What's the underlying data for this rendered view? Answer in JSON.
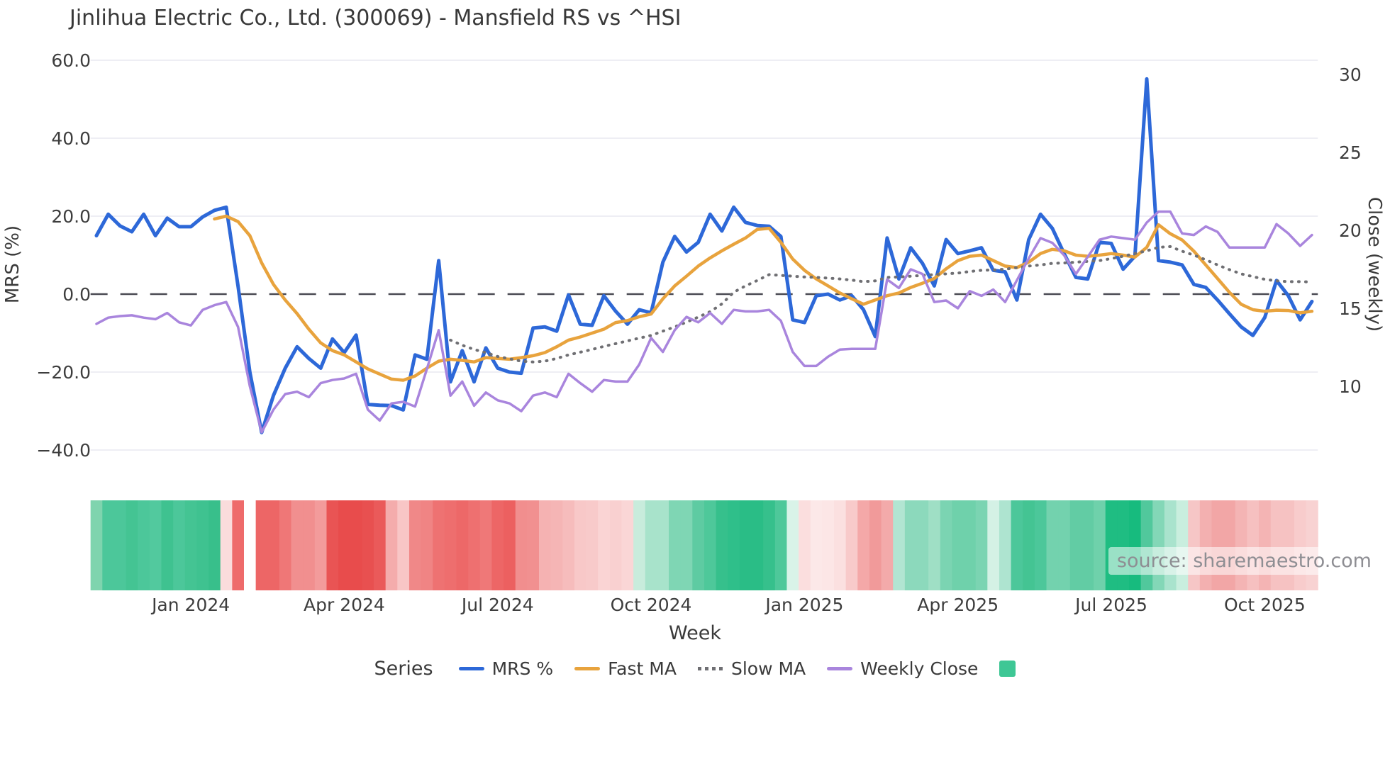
{
  "title": "Jinlihua Electric Co., Ltd. (300069) - Mansfield RS vs ^HSI",
  "watermark": "source: sharemaestro.com",
  "axes": {
    "left_label": "MRS (%)",
    "right_label": "Close (weekly)",
    "x_label": "Week",
    "left_ticks": [
      {
        "value": 60,
        "label": "60.0"
      },
      {
        "value": 40,
        "label": "40.0"
      },
      {
        "value": 20,
        "label": "20.0"
      },
      {
        "value": 0,
        "label": "0.0"
      },
      {
        "value": -20,
        "label": "−20.0"
      },
      {
        "value": -40,
        "label": "−40.0"
      }
    ],
    "right_ticks": [
      {
        "value": 30,
        "label": "30"
      },
      {
        "value": 25,
        "label": "25"
      },
      {
        "value": 20,
        "label": "20"
      },
      {
        "value": 15,
        "label": "15"
      },
      {
        "value": 10,
        "label": "10"
      }
    ],
    "x_ticks": [
      {
        "index": 8,
        "label": "Jan 2024"
      },
      {
        "index": 21,
        "label": "Apr 2024"
      },
      {
        "index": 34,
        "label": "Jul 2024"
      },
      {
        "index": 47,
        "label": "Oct 2024"
      },
      {
        "index": 60,
        "label": "Jan 2025"
      },
      {
        "index": 73,
        "label": "Apr 2025"
      },
      {
        "index": 86,
        "label": "Jul 2025"
      },
      {
        "index": 99,
        "label": "Oct 2025"
      }
    ]
  },
  "legend": {
    "title": "Series",
    "items": [
      {
        "label": "MRS %",
        "style": "line",
        "color": "#2d68d8"
      },
      {
        "label": "Fast MA",
        "style": "line",
        "color": "#e8a33d"
      },
      {
        "label": "Slow MA",
        "style": "dotted",
        "color": "#6f6f73"
      },
      {
        "label": "Weekly Close",
        "style": "line",
        "color": "#a985dd"
      },
      {
        "label": "",
        "style": "square",
        "color": "#3ec795"
      }
    ]
  },
  "colors": {
    "grid": "#e9e9f0",
    "zero_line": "#4a4a52",
    "tick_text": "#3d3d3d",
    "mrs": "#2d68d8",
    "fast_ma": "#e8a33d",
    "slow_ma": "#6f6f73",
    "weekly_close": "#a985dd",
    "legend_square": "#3ec795"
  },
  "chart_data": {
    "type": "line",
    "title": "Jinlihua Electric Co., Ltd. (300069) - Mansfield RS vs ^HSI",
    "xlabel": "Week",
    "n_points": 104,
    "x_unit": "weekly index, ticks listed in axes.x_ticks",
    "left_axis": {
      "label": "MRS (%)",
      "ticks": [
        60,
        40,
        20,
        0,
        -20,
        -40
      ],
      "zero_line_dashed": true
    },
    "right_axis": {
      "label": "Close (weekly)",
      "ticks": [
        30,
        25,
        20,
        15,
        10
      ]
    },
    "legend_position": "bottom-center",
    "grid": "horizontal-only",
    "series": [
      {
        "name": "MRS %",
        "axis": "left",
        "color": "#2d68d8",
        "style": "solid",
        "width": 5,
        "values": [
          15,
          20.5,
          17.5,
          16,
          20.5,
          15,
          19.5,
          17.3,
          17.3,
          19.8,
          21.5,
          22.3,
          2,
          -20,
          -35.5,
          -26,
          -19,
          -13.5,
          -16.5,
          -19,
          -11.5,
          -15,
          -10.5,
          -28.3,
          -28.5,
          -28.6,
          -29.7,
          -15.6,
          -16.7,
          8.6,
          -22.5,
          -14.5,
          -22.5,
          -13.8,
          -19,
          -20,
          -20.3,
          -8.7,
          -8.4,
          -9.5,
          -0.2,
          -7.7,
          -8,
          -0.4,
          -4.4,
          -7.7,
          -4,
          -4.8,
          8.2,
          14.8,
          10.8,
          13.3,
          20.5,
          16.2,
          22.3,
          18.4,
          17.6,
          17.4,
          14.8,
          -6.6,
          -7.3,
          -0.4,
          0,
          -1.5,
          -0.4,
          -4,
          -10.9,
          14.4,
          3.9,
          11.9,
          7.9,
          2.1,
          14,
          10.4,
          11.1,
          11.9,
          6.1,
          5.7,
          -1.5,
          14,
          20.5,
          16.9,
          10.4,
          4.3,
          3.9,
          13.3,
          13,
          6.4,
          9.7,
          55.2,
          8.6,
          8.2,
          7.5,
          2.5,
          1.7,
          -1.5,
          -5,
          -8.4,
          -10.6,
          -6,
          3.5,
          -0.4,
          -6.6,
          -1.9
        ]
      },
      {
        "name": "Fast MA",
        "axis": "left",
        "color": "#e8a33d",
        "style": "solid",
        "width": 4.5,
        "values": [
          null,
          null,
          null,
          null,
          null,
          null,
          null,
          null,
          null,
          null,
          19.3,
          20,
          18.6,
          15,
          8,
          2.5,
          -1.5,
          -5,
          -9,
          -12.5,
          -14.5,
          -15.6,
          -17.4,
          -19.2,
          -20.5,
          -21.8,
          -22.1,
          -21,
          -19,
          -17.2,
          -16.7,
          -17,
          -17.4,
          -16.3,
          -16.5,
          -16.7,
          -16.3,
          -15.8,
          -15,
          -13.5,
          -11.8,
          -11,
          -10,
          -9,
          -7.3,
          -6.8,
          -5.8,
          -5.1,
          -1.2,
          2.1,
          4.6,
          7.2,
          9.3,
          11.1,
          12.8,
          14.4,
          16.6,
          16.9,
          13.3,
          9,
          6.1,
          3.9,
          2.1,
          0.3,
          -1.2,
          -2.6,
          -1.5,
          -0.4,
          0.3,
          1.7,
          2.8,
          4,
          6.5,
          8.6,
          9.7,
          10,
          8.6,
          7.2,
          6.8,
          8.2,
          10.4,
          11.5,
          11.1,
          10,
          9.7,
          10,
          10.4,
          10,
          9.5,
          12,
          17.8,
          15.5,
          13.9,
          11,
          7.5,
          4,
          0.5,
          -2.6,
          -4,
          -4.4,
          -4.1,
          -4.2,
          -4.8,
          -4.4
        ]
      },
      {
        "name": "Slow MA",
        "axis": "left",
        "color": "#6f6f73",
        "style": "dotted",
        "width": 3.5,
        "values": [
          null,
          null,
          null,
          null,
          null,
          null,
          null,
          null,
          null,
          null,
          null,
          null,
          null,
          null,
          null,
          null,
          null,
          null,
          null,
          null,
          null,
          null,
          null,
          null,
          null,
          null,
          null,
          null,
          null,
          null,
          -11.8,
          -13.1,
          -14.2,
          -15,
          -16,
          -16.6,
          -17.2,
          -17.4,
          -17.2,
          -16.5,
          -15.6,
          -14.9,
          -14.2,
          -13.4,
          -12.7,
          -12,
          -11.3,
          -10.6,
          -9.5,
          -8.4,
          -7.2,
          -5.9,
          -4.5,
          -2.5,
          0.5,
          2.1,
          3.5,
          5,
          4.8,
          4.6,
          4.4,
          4.3,
          4.1,
          3.9,
          3.6,
          3.2,
          3.4,
          4.3,
          4.4,
          4.6,
          4.8,
          5,
          5.2,
          5.4,
          5.8,
          6.1,
          6.2,
          6.4,
          6.8,
          7.2,
          7.5,
          7.9,
          8,
          8.2,
          8.4,
          8.6,
          9.1,
          9.7,
          10.4,
          11.1,
          12,
          12.2,
          11,
          10,
          8.8,
          7.5,
          6.3,
          5.2,
          4.5,
          3.8,
          3.4,
          3.2,
          3.2,
          3.1
        ]
      },
      {
        "name": "Weekly Close",
        "axis": "right",
        "color": "#a985dd",
        "style": "solid",
        "width": 3.5,
        "values": [
          14,
          14.4,
          14.5,
          14.55,
          14.4,
          14.3,
          14.7,
          14.1,
          13.9,
          14.9,
          15.2,
          15.4,
          13.8,
          10,
          7.05,
          8.5,
          9.5,
          9.65,
          9.3,
          10.2,
          10.4,
          10.5,
          10.8,
          8.5,
          7.8,
          8.9,
          9,
          8.7,
          11.1,
          13.6,
          9.4,
          10.3,
          8.75,
          9.6,
          9.1,
          8.9,
          8.4,
          9.4,
          9.6,
          9.3,
          10.8,
          10.2,
          9.65,
          10.4,
          10.3,
          10.3,
          11.4,
          13.1,
          12.2,
          13.6,
          14.45,
          14.1,
          14.7,
          14,
          14.9,
          14.8,
          14.8,
          14.9,
          14.2,
          12.2,
          11.3,
          11.3,
          11.9,
          12.35,
          12.4,
          12.4,
          12.4,
          16.85,
          16.3,
          17.5,
          17.2,
          15.4,
          15.5,
          15,
          16.1,
          15.8,
          16.2,
          15.4,
          16.8,
          18.2,
          19.5,
          19.2,
          18.4,
          17.2,
          18.3,
          19.4,
          19.6,
          19.5,
          19.4,
          20.5,
          21.2,
          21.2,
          19.8,
          19.7,
          20.25,
          19.9,
          18.9,
          18.9,
          18.9,
          18.9,
          20.4,
          19.8,
          19,
          19.7
        ]
      }
    ],
    "heatmap_strip": {
      "description": "weekly sentiment band below plot, one cell per week",
      "colors": [
        "#7fd4ae",
        "#4cc79a",
        "#4cc79a",
        "#44c493",
        "#4cc79a",
        "#52c99e",
        "#3fc290",
        "#4cc79a",
        "#44c493",
        "#3fc290",
        "#38bf8b",
        "#fadcdc",
        "#ee6b6b",
        "#ffffff",
        "#ed6666",
        "#ed6666",
        "#ef7777",
        "#f18f8f",
        "#f18f8f",
        "#f39b9b",
        "#e95454",
        "#e84c4c",
        "#e84c4c",
        "#e85050",
        "#ea5a5a",
        "#f4acac",
        "#f8c6c6",
        "#f08888",
        "#f08484",
        "#ee7272",
        "#ee6e6e",
        "#ed6868",
        "#ee7070",
        "#ef7878",
        "#ed6666",
        "#ec6060",
        "#f18e8e",
        "#f19090",
        "#f5b2b2",
        "#f5b5b5",
        "#f6bcbc",
        "#f8c8c8",
        "#f8caca",
        "#fad4d4",
        "#f9d0d0",
        "#fad6d6",
        "#c8ecdc",
        "#a8e3cb",
        "#a8e3cb",
        "#7fd6b4",
        "#7fd6b4",
        "#5ecba2",
        "#4ec89a",
        "#36c08c",
        "#2fbf8a",
        "#2abd86",
        "#2abd86",
        "#36c08c",
        "#4ec89a",
        "#d9f3e8",
        "#fbdede",
        "#fce8e8",
        "#fce6e6",
        "#fbe0e0",
        "#f8caca",
        "#f4a8a8",
        "#f19a9a",
        "#f3aaaa",
        "#b2e5d2",
        "#8cd9bc",
        "#8cd9bc",
        "#9fdfc5",
        "#7bd4b2",
        "#6fd1ab",
        "#6fd1ab",
        "#7bd4b2",
        "#d4f1e5",
        "#aee4d0",
        "#4cc79a",
        "#44c493",
        "#4cc79a",
        "#73d2ae",
        "#73d2ae",
        "#62cca4",
        "#62cca4",
        "#6fd1ab",
        "#1fbd82",
        "#1fbd82",
        "#17bb7e",
        "#51c89c",
        "#83d7b7",
        "#a9e3cd",
        "#c9eede",
        "#f6c6c6",
        "#f3b0b0",
        "#f2a6a6",
        "#f2a6a6",
        "#f4b4b4",
        "#f6c0c0",
        "#f4b4b4",
        "#f6c2c2",
        "#f6c2c2",
        "#f8cccc",
        "#f8d2d2"
      ]
    }
  }
}
